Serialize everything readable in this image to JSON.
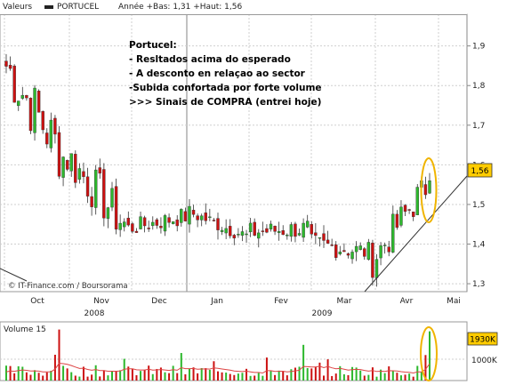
{
  "header": {
    "source_label": "Valeurs",
    "ticker": "PORTUCEL",
    "range_text": "Année +Bas: 1,31 +Haut: 1,56"
  },
  "annotation": {
    "lines": [
      "Portucel:",
      "- Resltados acima do esperado",
      "- A desconto en relaçao ao sector",
      "-Subida confortada por forte volume",
      ">>> Sinais de COMPRA (entrei hoje)"
    ]
  },
  "attribution": "© IT-Finance.com / Boursorama",
  "volume": {
    "title": "Volume 15",
    "ticks": [
      "1000K"
    ],
    "last_label": "1930K",
    "last_value_k": 1930,
    "ylim_k": [
      0,
      2300
    ]
  },
  "colors": {
    "up": "#2db82d",
    "down": "#cc1111",
    "grid": "#cfcfcf",
    "highlight_box": "#ffcc00",
    "ellipse": "#f0b400",
    "moving_average": "#dd4444"
  },
  "chart_data": {
    "type": "candlestick",
    "title": "PORTUCEL",
    "ylim": [
      1.28,
      1.98
    ],
    "y_ticks": [
      "1,3",
      "1,4",
      "1,5",
      "1,6",
      "1,7",
      "1,8",
      "1,9"
    ],
    "x_ticks": [
      "Oct",
      "Nov",
      "Dec",
      "Jan",
      "Fev",
      "Mar",
      "Avr",
      "Mai"
    ],
    "year_labels": [
      "2008",
      "2009"
    ],
    "last_price_label": "1,56",
    "last_price": 1.56,
    "trendline": [
      {
        "x": "mid-Mar 2009",
        "y": 1.28
      },
      {
        "x": "end-Apr 2009",
        "y": 1.52
      }
    ],
    "series": [
      {
        "segment": "Oct 2008",
        "close_start": 1.85,
        "close_end": 1.62,
        "low": 1.52,
        "high": 1.95
      },
      {
        "segment": "Nov 2008",
        "close_start": 1.62,
        "close_end": 1.45,
        "low": 1.41,
        "high": 1.74
      },
      {
        "segment": "Dec 2008",
        "close_start": 1.44,
        "close_end": 1.47,
        "low": 1.4,
        "high": 1.53
      },
      {
        "segment": "Jan 2009",
        "close_start": 1.48,
        "close_end": 1.42,
        "low": 1.4,
        "high": 1.51
      },
      {
        "segment": "Fev 2009",
        "close_start": 1.43,
        "close_end": 1.44,
        "low": 1.34,
        "high": 1.48
      },
      {
        "segment": "Mar 2009",
        "close_start": 1.4,
        "close_end": 1.38,
        "low": 1.33,
        "high": 1.48
      },
      {
        "segment": "Avr 2009",
        "close_start": 1.36,
        "close_end": 1.56,
        "low": 1.31,
        "high": 1.56
      }
    ]
  }
}
